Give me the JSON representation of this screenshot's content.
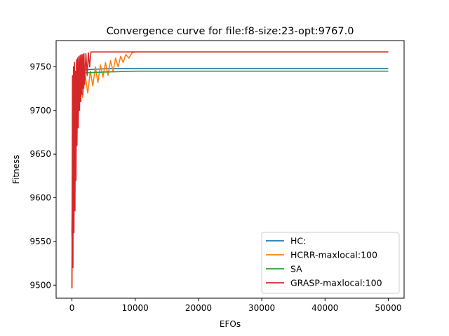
{
  "chart_data": {
    "type": "line",
    "title": "Convergence curve for file:f8-size:23-opt:9767.0",
    "xlabel": "EFOs",
    "ylabel": "Fitness",
    "xlim": [
      -2500,
      52500
    ],
    "ylim": [
      9485,
      9780
    ],
    "xticks": [
      0,
      10000,
      20000,
      30000,
      40000,
      50000
    ],
    "yticks": [
      9500,
      9550,
      9600,
      9650,
      9700,
      9750
    ],
    "legend_position": "lower-right",
    "grid": false,
    "series": [
      {
        "name": "HC:",
        "color": "#1f77b4",
        "points": [
          [
            0,
            9560
          ],
          [
            150,
            9700
          ],
          [
            350,
            9735
          ],
          [
            700,
            9743
          ],
          [
            1500,
            9746
          ],
          [
            3000,
            9747
          ],
          [
            6000,
            9748
          ],
          [
            50000,
            9748
          ]
        ]
      },
      {
        "name": "HCRR-maxlocal:100",
        "color": "#ff7f0e",
        "points": [
          [
            0,
            9496
          ],
          [
            200,
            9700
          ],
          [
            500,
            9730
          ],
          [
            900,
            9700
          ],
          [
            1300,
            9735
          ],
          [
            1700,
            9715
          ],
          [
            2100,
            9740
          ],
          [
            2500,
            9720
          ],
          [
            2900,
            9745
          ],
          [
            3300,
            9728
          ],
          [
            3700,
            9750
          ],
          [
            4100,
            9732
          ],
          [
            4500,
            9752
          ],
          [
            4900,
            9738
          ],
          [
            5300,
            9755
          ],
          [
            5700,
            9740
          ],
          [
            6100,
            9757
          ],
          [
            6500,
            9745
          ],
          [
            6900,
            9760
          ],
          [
            7300,
            9750
          ],
          [
            7700,
            9762
          ],
          [
            8100,
            9755
          ],
          [
            8500,
            9764
          ],
          [
            9000,
            9760
          ],
          [
            9500,
            9766
          ],
          [
            10000,
            9767
          ],
          [
            50000,
            9767
          ]
        ]
      },
      {
        "name": "SA",
        "color": "#2ca02c",
        "points": [
          [
            0,
            9555
          ],
          [
            200,
            9690
          ],
          [
            500,
            9730
          ],
          [
            900,
            9740
          ],
          [
            2000,
            9743
          ],
          [
            5000,
            9744
          ],
          [
            10000,
            9745
          ],
          [
            50000,
            9745
          ]
        ]
      },
      {
        "name": "GRASP-maxlocal:100",
        "color": "#d62728",
        "points": [
          [
            0,
            9497
          ],
          [
            80,
            9740
          ],
          [
            160,
            9520
          ],
          [
            240,
            9750
          ],
          [
            320,
            9560
          ],
          [
            400,
            9755
          ],
          [
            480,
            9585
          ],
          [
            560,
            9745
          ],
          [
            640,
            9620
          ],
          [
            720,
            9758
          ],
          [
            800,
            9660
          ],
          [
            900,
            9760
          ],
          [
            1000,
            9680
          ],
          [
            1100,
            9762
          ],
          [
            1200,
            9700
          ],
          [
            1300,
            9763
          ],
          [
            1400,
            9710
          ],
          [
            1500,
            9764
          ],
          [
            1600,
            9718
          ],
          [
            1700,
            9764
          ],
          [
            1800,
            9725
          ],
          [
            1900,
            9765
          ],
          [
            2000,
            9730
          ],
          [
            2200,
            9765
          ],
          [
            2400,
            9740
          ],
          [
            2600,
            9766
          ],
          [
            2800,
            9750
          ],
          [
            3000,
            9767
          ],
          [
            50000,
            9767
          ]
        ]
      }
    ]
  }
}
